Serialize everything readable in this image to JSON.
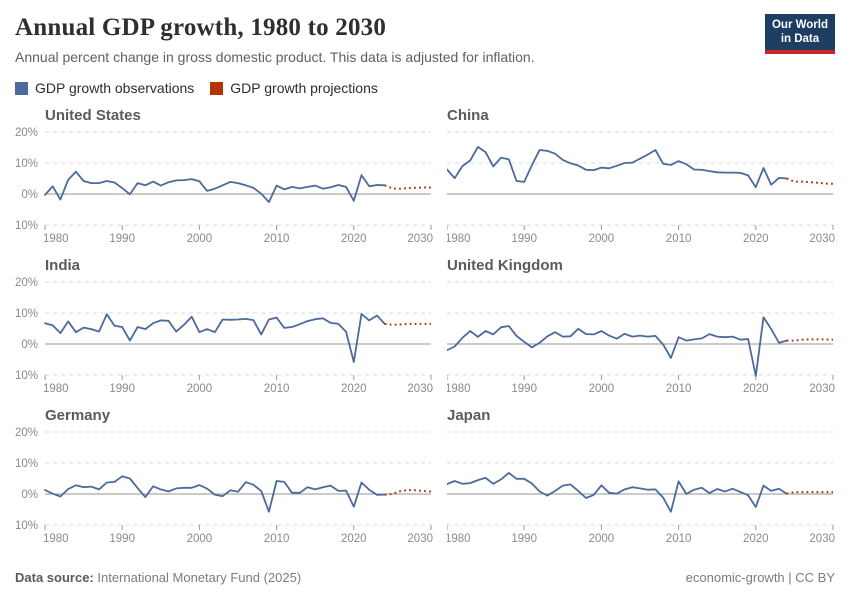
{
  "header": {
    "title": "Annual GDP growth, 1980 to 2030",
    "subtitle": "Annual percent change in gross domestic product. This data is adjusted for inflation.",
    "logo": {
      "line1": "Our World",
      "line2": "in Data"
    }
  },
  "legend": {
    "items": [
      {
        "label": "GDP growth observations",
        "color": "#4C6A9C"
      },
      {
        "label": "GDP growth projections",
        "color": "#B13507"
      }
    ]
  },
  "footer": {
    "datasource_label": "Data source:",
    "datasource_value": " International Monetary Fund (2025)",
    "right_text": "economic-growth | CC BY"
  },
  "colors": {
    "observation_blue": "#4C6A9C",
    "projection_red": "#B13507",
    "grid_line": "#d9d9d9",
    "zero_line": "#969696",
    "tick_mark": "#9a9a9a",
    "axis_text": "#8a8a8a",
    "logo_navy": "#1d3d63",
    "logo_red": "#cf2426"
  },
  "chart_data": [
    {
      "type": "line",
      "title": "United States",
      "show_y_labels": true,
      "xlim": [
        1980,
        2030
      ],
      "ylim": [
        -10,
        20
      ],
      "xticks": [
        1980,
        1990,
        2000,
        2010,
        2020,
        2030
      ],
      "yticks": [
        -10,
        0,
        10,
        20
      ],
      "series": [
        {
          "name": "GDP growth observations",
          "style": "solid",
          "color": "#4C6A9C",
          "year_start": 1980,
          "values": [
            -0.3,
            2.5,
            -1.8,
            4.6,
            7.2,
            4.2,
            3.5,
            3.5,
            4.2,
            3.7,
            1.9,
            -0.1,
            3.5,
            2.8,
            4.0,
            2.7,
            3.8,
            4.4,
            4.5,
            4.8,
            4.1,
            1.0,
            1.7,
            2.8,
            3.9,
            3.5,
            2.8,
            2.0,
            0.1,
            -2.6,
            2.7,
            1.5,
            2.3,
            1.8,
            2.3,
            2.7,
            1.7,
            2.2,
            2.9,
            2.3,
            -2.2,
            6.1,
            2.5,
            2.9,
            2.8
          ]
        },
        {
          "name": "GDP growth projections",
          "style": "dotted",
          "color": "#B13507",
          "year_start": 2024,
          "values": [
            2.8,
            1.8,
            1.7,
            1.9,
            2.0,
            2.1,
            2.1
          ]
        }
      ]
    },
    {
      "type": "line",
      "title": "China",
      "show_y_labels": false,
      "xlim": [
        1980,
        2030
      ],
      "ylim": [
        -10,
        20
      ],
      "xticks": [
        1980,
        1990,
        2000,
        2010,
        2020,
        2030
      ],
      "yticks": [
        -10,
        0,
        10,
        20
      ],
      "series": [
        {
          "name": "GDP growth observations",
          "style": "solid",
          "color": "#4C6A9C",
          "year_start": 1980,
          "values": [
            7.9,
            5.1,
            9.0,
            10.8,
            15.2,
            13.5,
            8.9,
            11.7,
            11.2,
            4.2,
            3.9,
            9.3,
            14.2,
            13.9,
            13.0,
            11.0,
            9.9,
            9.2,
            7.8,
            7.7,
            8.5,
            8.3,
            9.1,
            10.0,
            10.1,
            11.4,
            12.7,
            14.2,
            9.7,
            9.4,
            10.6,
            9.6,
            7.9,
            7.8,
            7.4,
            7.0,
            6.9,
            6.9,
            6.8,
            6.0,
            2.2,
            8.4,
            3.0,
            5.2,
            5.0
          ]
        },
        {
          "name": "GDP growth projections",
          "style": "dotted",
          "color": "#B13507",
          "year_start": 2024,
          "values": [
            5.0,
            4.0,
            4.0,
            3.8,
            3.6,
            3.4,
            3.3
          ]
        }
      ]
    },
    {
      "type": "line",
      "title": "India",
      "show_y_labels": true,
      "xlim": [
        1980,
        2030
      ],
      "ylim": [
        -10,
        20
      ],
      "xticks": [
        1980,
        1990,
        2000,
        2010,
        2020,
        2030
      ],
      "yticks": [
        -10,
        0,
        10,
        20
      ],
      "series": [
        {
          "name": "GDP growth observations",
          "style": "solid",
          "color": "#4C6A9C",
          "year_start": 1980,
          "values": [
            6.7,
            6.0,
            3.5,
            7.3,
            3.8,
            5.3,
            4.8,
            4.0,
            9.6,
            5.9,
            5.5,
            1.1,
            5.5,
            4.8,
            6.7,
            7.6,
            7.5,
            4.0,
            6.2,
            8.8,
            3.8,
            4.8,
            3.8,
            7.9,
            7.8,
            7.9,
            8.1,
            7.7,
            3.1,
            7.9,
            8.5,
            5.2,
            5.5,
            6.4,
            7.4,
            8.0,
            8.3,
            6.8,
            6.5,
            3.9,
            -5.8,
            9.7,
            7.6,
            9.2,
            6.5
          ]
        },
        {
          "name": "GDP growth projections",
          "style": "dotted",
          "color": "#B13507",
          "year_start": 2024,
          "values": [
            6.5,
            6.2,
            6.3,
            6.5,
            6.5,
            6.5,
            6.5
          ]
        }
      ]
    },
    {
      "type": "line",
      "title": "United Kingdom",
      "show_y_labels": false,
      "xlim": [
        1980,
        2030
      ],
      "ylim": [
        -10,
        20
      ],
      "xticks": [
        1980,
        1990,
        2000,
        2010,
        2020,
        2030
      ],
      "yticks": [
        -10,
        0,
        10,
        20
      ],
      "series": [
        {
          "name": "GDP growth observations",
          "style": "solid",
          "color": "#4C6A9C",
          "year_start": 1980,
          "values": [
            -2.0,
            -0.8,
            2.0,
            4.2,
            2.3,
            4.2,
            3.1,
            5.4,
            5.8,
            2.6,
            0.7,
            -1.1,
            0.4,
            2.5,
            3.8,
            2.4,
            2.5,
            4.9,
            3.2,
            3.1,
            4.2,
            2.7,
            1.7,
            3.3,
            2.4,
            2.7,
            2.4,
            2.6,
            -0.2,
            -4.5,
            2.2,
            1.1,
            1.5,
            1.8,
            3.2,
            2.4,
            2.2,
            2.4,
            1.4,
            1.6,
            -10.3,
            8.6,
            4.8,
            0.4,
            1.1
          ]
        },
        {
          "name": "GDP growth projections",
          "style": "dotted",
          "color": "#B13507",
          "year_start": 2024,
          "values": [
            1.1,
            1.1,
            1.4,
            1.5,
            1.5,
            1.5,
            1.4
          ]
        }
      ]
    },
    {
      "type": "line",
      "title": "Germany",
      "show_y_labels": true,
      "xlim": [
        1980,
        2030
      ],
      "ylim": [
        -10,
        20
      ],
      "xticks": [
        1980,
        1990,
        2000,
        2010,
        2020,
        2030
      ],
      "yticks": [
        -10,
        0,
        10,
        20
      ],
      "series": [
        {
          "name": "GDP growth observations",
          "style": "solid",
          "color": "#4C6A9C",
          "year_start": 1980,
          "values": [
            1.3,
            0.1,
            -0.8,
            1.6,
            2.8,
            2.2,
            2.4,
            1.5,
            3.7,
            3.9,
            5.7,
            5.0,
            1.9,
            -1.0,
            2.5,
            1.5,
            0.8,
            1.8,
            2.0,
            2.0,
            2.9,
            1.7,
            -0.2,
            -0.7,
            1.2,
            0.7,
            3.8,
            3.0,
            1.0,
            -5.7,
            4.2,
            3.9,
            0.4,
            0.4,
            2.2,
            1.5,
            2.2,
            2.7,
            1.0,
            1.1,
            -4.1,
            3.7,
            1.4,
            -0.3,
            -0.2
          ]
        },
        {
          "name": "GDP growth projections",
          "style": "dotted",
          "color": "#B13507",
          "year_start": 2024,
          "values": [
            -0.2,
            0.0,
            0.9,
            1.3,
            1.2,
            1.0,
            0.8
          ]
        }
      ]
    },
    {
      "type": "line",
      "title": "Japan",
      "show_y_labels": false,
      "xlim": [
        1980,
        2030
      ],
      "ylim": [
        -10,
        20
      ],
      "xticks": [
        1980,
        1990,
        2000,
        2010,
        2020,
        2030
      ],
      "yticks": [
        -10,
        0,
        10,
        20
      ],
      "series": [
        {
          "name": "GDP growth observations",
          "style": "solid",
          "color": "#4C6A9C",
          "year_start": 1980,
          "values": [
            3.2,
            4.2,
            3.3,
            3.5,
            4.5,
            5.2,
            3.3,
            4.7,
            6.8,
            4.9,
            4.9,
            3.4,
            0.8,
            -0.5,
            1.0,
            2.7,
            3.1,
            1.0,
            -1.3,
            -0.3,
            2.8,
            0.4,
            0.1,
            1.5,
            2.2,
            1.8,
            1.4,
            1.5,
            -1.2,
            -5.7,
            4.1,
            0.0,
            1.4,
            2.0,
            0.3,
            1.6,
            0.8,
            1.7,
            0.6,
            -0.4,
            -4.2,
            2.7,
            1.0,
            1.7,
            0.1
          ]
        },
        {
          "name": "GDP growth projections",
          "style": "dotted",
          "color": "#B13507",
          "year_start": 2024,
          "values": [
            0.1,
            0.6,
            0.6,
            0.6,
            0.6,
            0.6,
            0.6
          ]
        }
      ]
    }
  ]
}
